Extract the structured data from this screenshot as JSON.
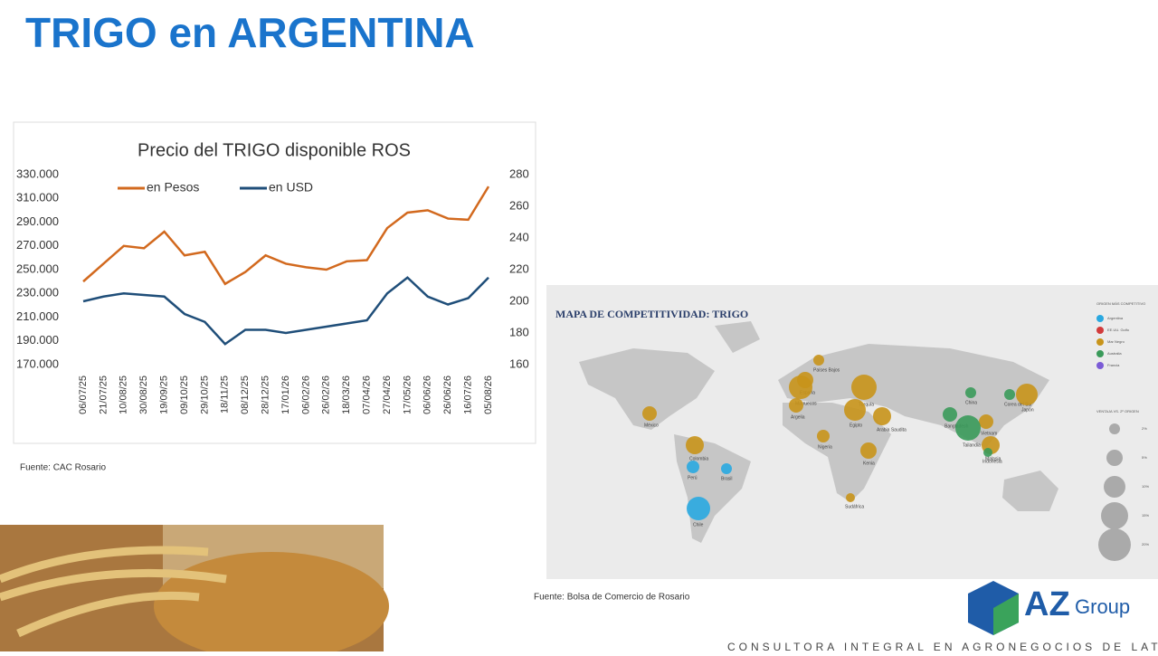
{
  "title": "TRIGO en ARGENTINA",
  "chart_data": {
    "type": "line",
    "title": "Precio del TRIGO disponible ROS",
    "categories": [
      "06/07/25",
      "21/07/25",
      "10/08/25",
      "30/08/25",
      "19/09/25",
      "09/10/25",
      "29/10/25",
      "18/11/25",
      "08/12/25",
      "28/12/25",
      "17/01/26",
      "06/02/26",
      "26/02/26",
      "18/03/26",
      "07/04/26",
      "27/04/26",
      "17/05/26",
      "06/06/26",
      "26/06/26",
      "16/07/26",
      "05/08/26"
    ],
    "series": [
      {
        "name": "en Pesos",
        "color": "#d2691e",
        "values": [
          240000,
          255000,
          270000,
          268000,
          282000,
          262000,
          265000,
          238000,
          248000,
          262000,
          255000,
          252000,
          250000,
          257000,
          258000,
          285000,
          298000,
          300000,
          293000,
          292000,
          320000
        ]
      },
      {
        "name": "en USD",
        "color": "#1f4e79",
        "axis": "y2",
        "values": [
          200,
          203,
          205,
          204,
          203,
          192,
          187,
          173,
          182,
          182,
          180,
          182,
          184,
          186,
          188,
          205,
          215,
          203,
          198,
          202,
          215
        ]
      }
    ],
    "ylim": [
      170000,
      330000
    ],
    "yticks": [
      {
        "value": 170000,
        "label": "170.000"
      },
      {
        "value": 190000,
        "label": "190.000"
      },
      {
        "value": 210000,
        "label": "210.000"
      },
      {
        "value": 230000,
        "label": "230.000"
      },
      {
        "value": 250000,
        "label": "250.000"
      },
      {
        "value": 270000,
        "label": "270.000"
      },
      {
        "value": 290000,
        "label": "290.000"
      },
      {
        "value": 310000,
        "label": "310.000"
      },
      {
        "value": 330000,
        "label": "330.000"
      }
    ],
    "y2lim": [
      160,
      280
    ],
    "y2ticks": [
      160,
      180,
      200,
      220,
      240,
      260,
      280
    ],
    "grid": false
  },
  "chart_source": "Fuente: CAC Rosario",
  "map": {
    "title": "MAPA DE COMPETITIVIDAD: TRIGO",
    "legend_title": "ORIGEN MÁS COMPETITIVO",
    "legend": [
      "Argentina",
      "EE.UU. Golfo",
      "Mar Negro",
      "Australia",
      "Francia"
    ],
    "size_legend_title": "VENTAJA VS. 2º ORIGEN",
    "size_labels": [
      "2%",
      "5%",
      "10%",
      "15%",
      "20%"
    ],
    "labels": [
      "Países Bajos",
      "España",
      "Marruecos",
      "Turquía",
      "Egipto",
      "Arabia Saudita",
      "Argelia",
      "Nigeria",
      "Kenia",
      "Sudáfrica",
      "México",
      "Colombia",
      "Perú",
      "Brasil",
      "Chile",
      "China",
      "Corea del Sur",
      "Japón",
      "Bangladesh",
      "Vietnam",
      "Tailandia",
      "Malasia",
      "Indonesia"
    ],
    "source": "Fuente: Bolsa de Comercio de Rosario"
  },
  "logo": {
    "name": "AZ",
    "suffix": "Group",
    "tagline": "CONSULTORA INTEGRAL EN AGRONEGOCIOS DE LATAM"
  }
}
